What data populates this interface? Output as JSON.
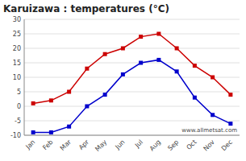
{
  "chart_data": {
    "type": "line",
    "title": "Karuizawa : temperatures (°C)",
    "categories": [
      "Jan",
      "Feb",
      "Mar",
      "Apr",
      "May",
      "Jun",
      "Jul",
      "Aug",
      "Sep",
      "Oct",
      "Nov",
      "Dec"
    ],
    "series": [
      {
        "color": "#cc0000",
        "marker": "square",
        "values": [
          1,
          2,
          5,
          13,
          18,
          20,
          24,
          25,
          20,
          14,
          10,
          4
        ]
      },
      {
        "color": "#0000cc",
        "marker": "square",
        "values": [
          -9,
          -9,
          -7,
          0,
          4,
          11,
          15,
          16,
          12,
          3,
          -3,
          -6
        ]
      }
    ],
    "ylim": [
      -10,
      30
    ],
    "yticks": [
      -10,
      -5,
      0,
      5,
      10,
      15,
      20,
      25,
      30
    ],
    "grid": true,
    "annotations": [
      "www.allmetsat.com"
    ]
  }
}
